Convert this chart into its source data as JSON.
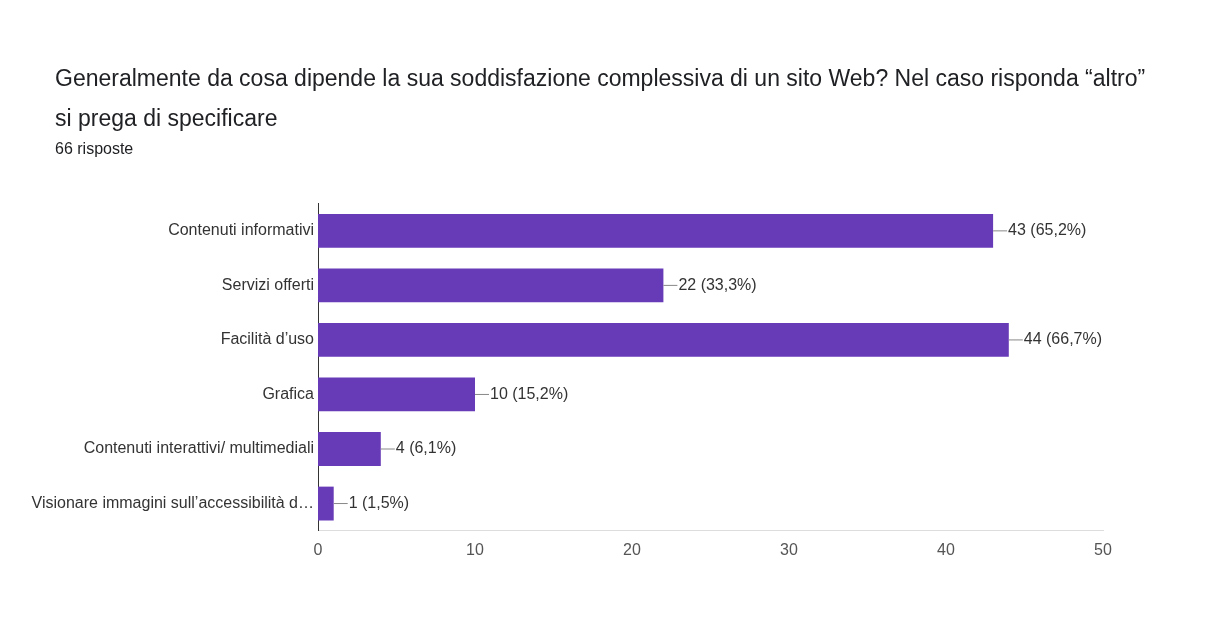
{
  "chart_data": {
    "type": "bar",
    "orientation": "horizontal",
    "title": "Generalmente da cosa dipende la sua  soddisfazione complessiva di un sito Web? Nel caso risponda “altro” si prega di specificare",
    "subtitle": "66 risposte",
    "categories": [
      "Contenuti informativi",
      "Servizi offerti",
      "Facilità d’uso",
      "Grafica",
      "Contenuti interattivi/ multimediali",
      "Visionare immagini sull’accessibilità d…"
    ],
    "values": [
      43,
      22,
      44,
      10,
      4,
      1
    ],
    "value_labels": [
      "43 (65,2%)",
      "22 (33,3%)",
      "44 (66,7%)",
      "10 (15,2%)",
      "4 (6,1%)",
      "1 (1,5%)"
    ],
    "color": "#673ab7",
    "xlim": [
      0,
      50
    ],
    "xticks": [
      0,
      10,
      20,
      30,
      40,
      50
    ],
    "grid": false,
    "legend": false
  }
}
